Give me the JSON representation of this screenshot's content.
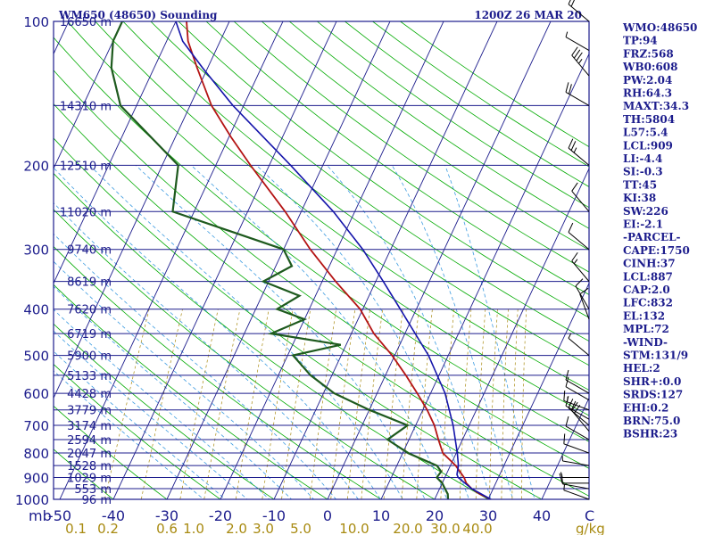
{
  "header": {
    "station": "WM650 (48650) Sounding",
    "time": "1200Z 26 MAR 20"
  },
  "chart_data": {
    "type": "line",
    "title": "WM650 (48650) Sounding",
    "xlabel": "C",
    "ylabel": "mb",
    "mixing_label": "g/kg",
    "xlim": [
      -50,
      50
    ],
    "ylim": [
      1000,
      100
    ],
    "pressure_ticks": [
      {
        "label": "100",
        "p": 100
      },
      {
        "label": "200",
        "p": 200
      },
      {
        "label": "300",
        "p": 300
      },
      {
        "label": "400",
        "p": 400
      },
      {
        "label": "500",
        "p": 500
      },
      {
        "label": "600",
        "p": 600
      },
      {
        "label": "700",
        "p": 700
      },
      {
        "label": "800",
        "p": 800
      },
      {
        "label": "900",
        "p": 900
      },
      {
        "label": "1000",
        "p": 1000
      }
    ],
    "temp_ticks": [
      {
        "label": "-50",
        "t": -50
      },
      {
        "label": "-40",
        "t": -40
      },
      {
        "label": "-30",
        "t": -30
      },
      {
        "label": "-20",
        "t": -20
      },
      {
        "label": "-10",
        "t": -10
      },
      {
        "label": "0",
        "t": 0
      },
      {
        "label": "10",
        "t": 10
      },
      {
        "label": "20",
        "t": 20
      },
      {
        "label": "30",
        "t": 30
      },
      {
        "label": "40",
        "t": 40
      }
    ],
    "mixing_ticks": [
      {
        "label": "0.1",
        "t": -47
      },
      {
        "label": "0.2",
        "t": -41
      },
      {
        "label": "0.6",
        "t": -30
      },
      {
        "label": "1.0",
        "t": -25
      },
      {
        "label": "2.0",
        "t": -17
      },
      {
        "label": "3.0",
        "t": -12
      },
      {
        "label": "5.0",
        "t": -5
      },
      {
        "label": "10.0",
        "t": 5
      },
      {
        "label": "20.0",
        "t": 15
      },
      {
        "label": "30.0",
        "t": 22
      },
      {
        "label": "40.0",
        "t": 28
      }
    ],
    "height_labels": [
      {
        "label": "16650 m",
        "p": 100
      },
      {
        "label": "14310 m",
        "p": 150
      },
      {
        "label": "12510 m",
        "p": 200
      },
      {
        "label": "11020 m",
        "p": 250
      },
      {
        "label": "9740 m",
        "p": 300
      },
      {
        "label": "8619 m",
        "p": 350
      },
      {
        "label": "7620 m",
        "p": 400
      },
      {
        "label": "6719 m",
        "p": 450
      },
      {
        "label": "5900 m",
        "p": 500
      },
      {
        "label": "5133 m",
        "p": 550
      },
      {
        "label": "4428 m",
        "p": 600
      },
      {
        "label": "3779 m",
        "p": 650
      },
      {
        "label": "3174 m",
        "p": 700
      },
      {
        "label": "2594 m",
        "p": 750
      },
      {
        "label": "2047 m",
        "p": 800
      },
      {
        "label": "1528 m",
        "p": 850
      },
      {
        "label": "1029 m",
        "p": 900
      },
      {
        "label": "553 m",
        "p": 950
      },
      {
        "label": "96 m",
        "p": 1000
      }
    ],
    "series": [
      {
        "name": "temperature",
        "color": "#b41414",
        "points": [
          [
            1000,
            30.5
          ],
          [
            975,
            28
          ],
          [
            950,
            26
          ],
          [
            925,
            24.5
          ],
          [
            900,
            23.6
          ],
          [
            850,
            21
          ],
          [
            800,
            17.5
          ],
          [
            750,
            15.5
          ],
          [
            700,
            13.5
          ],
          [
            650,
            10.8
          ],
          [
            600,
            7.5
          ],
          [
            550,
            3.8
          ],
          [
            500,
            -0.5
          ],
          [
            450,
            -5.8
          ],
          [
            400,
            -10.5
          ],
          [
            350,
            -17.5
          ],
          [
            300,
            -25
          ],
          [
            250,
            -33
          ],
          [
            200,
            -43.5
          ],
          [
            175,
            -49.5
          ],
          [
            150,
            -56
          ],
          [
            125,
            -62
          ],
          [
            110,
            -66
          ],
          [
            100,
            -68
          ]
        ]
      },
      {
        "name": "dewpoint",
        "color": "#1e5a1e",
        "points": [
          [
            1000,
            22.5
          ],
          [
            975,
            22
          ],
          [
            950,
            21
          ],
          [
            925,
            20
          ],
          [
            900,
            18.5
          ],
          [
            875,
            18.8
          ],
          [
            850,
            17.5
          ],
          [
            800,
            11
          ],
          [
            750,
            6
          ],
          [
            700,
            8.5
          ],
          [
            650,
            0
          ],
          [
            600,
            -8
          ],
          [
            550,
            -14
          ],
          [
            500,
            -19
          ],
          [
            475,
            -11
          ],
          [
            450,
            -25
          ],
          [
            420,
            -20
          ],
          [
            400,
            -26
          ],
          [
            375,
            -23
          ],
          [
            350,
            -31
          ],
          [
            325,
            -27
          ],
          [
            300,
            -30
          ],
          [
            250,
            -54
          ],
          [
            200,
            -57
          ],
          [
            150,
            -73
          ],
          [
            125,
            -78
          ],
          [
            110,
            -80
          ],
          [
            100,
            -80
          ]
        ]
      },
      {
        "name": "parcel",
        "color": "#1414aa",
        "points": [
          [
            1000,
            30.5
          ],
          [
            950,
            26
          ],
          [
            900,
            22.5
          ],
          [
            887,
            22
          ],
          [
            850,
            21.5
          ],
          [
            800,
            20.2
          ],
          [
            700,
            17
          ],
          [
            600,
            12.7
          ],
          [
            500,
            6.3
          ],
          [
            400,
            -3
          ],
          [
            350,
            -8.6
          ],
          [
            300,
            -15.2
          ],
          [
            250,
            -24
          ],
          [
            200,
            -36
          ],
          [
            150,
            -52
          ],
          [
            125,
            -61
          ],
          [
            110,
            -67
          ],
          [
            100,
            -70
          ]
        ]
      }
    ],
    "wind_barbs": [
      {
        "p": 1000,
        "dir": 290,
        "spd": 5
      },
      {
        "p": 950,
        "dir": 280,
        "spd": 10
      },
      {
        "p": 925,
        "dir": 270,
        "spd": 10
      },
      {
        "p": 900,
        "dir": 270,
        "spd": 5
      },
      {
        "p": 850,
        "dir": 280,
        "spd": 5
      },
      {
        "p": 800,
        "dir": 290,
        "spd": 10
      },
      {
        "p": 750,
        "dir": 300,
        "spd": 10
      },
      {
        "p": 720,
        "dir": 320,
        "spd": 20
      },
      {
        "p": 700,
        "dir": 310,
        "spd": 20
      },
      {
        "p": 680,
        "dir": 300,
        "spd": 15
      },
      {
        "p": 650,
        "dir": 290,
        "spd": 15
      },
      {
        "p": 620,
        "dir": 300,
        "spd": 10
      },
      {
        "p": 600,
        "dir": 300,
        "spd": 10
      },
      {
        "p": 500,
        "dir": 310,
        "spd": 5
      },
      {
        "p": 420,
        "dir": 340,
        "spd": 10
      },
      {
        "p": 400,
        "dir": 330,
        "spd": 10
      },
      {
        "p": 350,
        "dir": 320,
        "spd": 15
      },
      {
        "p": 300,
        "dir": 310,
        "spd": 10
      },
      {
        "p": 250,
        "dir": 320,
        "spd": 10
      },
      {
        "p": 200,
        "dir": 310,
        "spd": 25
      },
      {
        "p": 150,
        "dir": 300,
        "spd": 20
      },
      {
        "p": 130,
        "dir": 320,
        "spd": 35
      },
      {
        "p": 115,
        "dir": 300,
        "spd": 5
      },
      {
        "p": 100,
        "dir": 310,
        "spd": 20
      }
    ]
  },
  "indices": [
    "WMO:48650",
    "TP:94",
    "FRZ:568",
    "WB0:608",
    "PW:2.04",
    "RH:64.3",
    "MAXT:34.3",
    "TH:5804",
    "L57:5.4",
    "LCL:909",
    "LI:-4.4",
    "SI:-0.3",
    "TT:45",
    "KI:38",
    "SW:226",
    "EI:-2.1",
    "-PARCEL-",
    "CAPE:1750",
    "CINH:37",
    "LCL:887",
    "CAP:2.0",
    "LFC:832",
    "EL:132",
    "MPL:72",
    "-WIND-",
    "STM:131/9",
    "HEL:2",
    "SHR+:0.0",
    "SRDS:127",
    "EHI:0.2",
    "BRN:75.0",
    "BSHR:23"
  ],
  "colors": {
    "frame": "#1c1c8c",
    "isobar": "#1c1c8c",
    "isotherm": "#1c1c8c",
    "dry_adiabat": "#00aa00",
    "moist_adiabat": "#3c9be0",
    "mixing_ratio": "#a88a10",
    "mixing_text": "#a88a10"
  }
}
